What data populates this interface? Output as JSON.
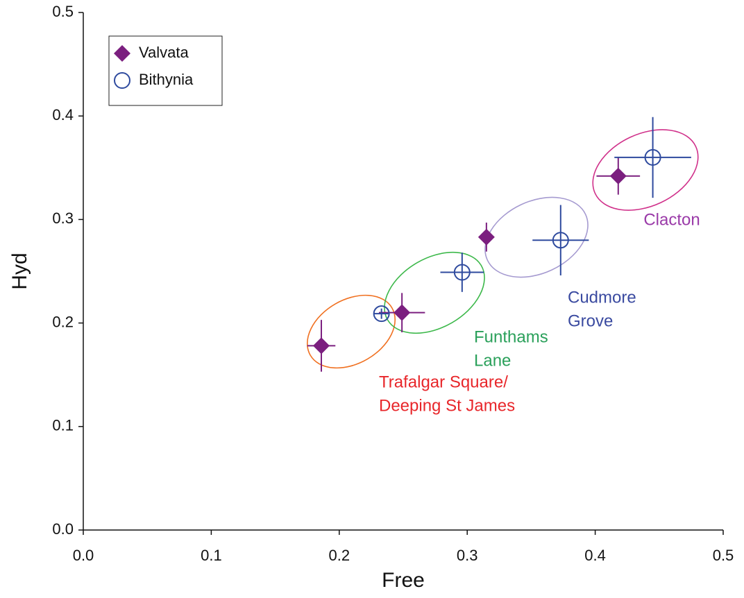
{
  "chart_data": {
    "type": "scatter",
    "xlabel": "Free",
    "ylabel": "Hyd",
    "xlim": [
      0,
      0.5
    ],
    "ylim": [
      0,
      0.5
    ],
    "xticks": [
      {
        "value": 0,
        "label": "0.0"
      },
      {
        "value": 0.1,
        "label": "0.1"
      },
      {
        "value": 0.2,
        "label": "0.2"
      },
      {
        "value": 0.3,
        "label": "0.3"
      },
      {
        "value": 0.4,
        "label": "0.4"
      },
      {
        "value": 0.5,
        "label": "0.5"
      }
    ],
    "yticks": [
      {
        "value": 0,
        "label": "0.0"
      },
      {
        "value": 0.1,
        "label": "0.1"
      },
      {
        "value": 0.2,
        "label": "0.2"
      },
      {
        "value": 0.3,
        "label": "0.3"
      },
      {
        "value": 0.4,
        "label": "0.4"
      },
      {
        "value": 0.5,
        "label": "0.5"
      }
    ],
    "legend": "upper left",
    "series": [
      {
        "name": "Valvata",
        "color": "#7b1f7f",
        "marker": "diamond",
        "x": [
          0.186,
          0.249,
          0.315,
          0.418
        ],
        "values": [
          0.178,
          0.21,
          0.283,
          0.342
        ],
        "xerr": [
          0.011,
          0.018,
          0.005,
          0.017
        ],
        "yerr": [
          0.025,
          0.019,
          0.014,
          0.018
        ]
      },
      {
        "name": "Bithynia",
        "color": "#2e4a9e",
        "marker": "circle",
        "x": [
          0.233,
          0.296,
          0.373,
          0.445
        ],
        "values": [
          0.209,
          0.249,
          0.28,
          0.36
        ],
        "xerr": [
          0.006,
          0.017,
          0.022,
          0.03
        ],
        "yerr": [
          0.005,
          0.019,
          0.034,
          0.039
        ]
      }
    ],
    "annotations": [
      {
        "lines": [
          "Trafalgar Square/",
          "Deeping St James"
        ],
        "color": "#e8262a"
      },
      {
        "lines": [
          "Funthams",
          "Lane"
        ],
        "color": "#2aa05a"
      },
      {
        "lines": [
          "Cudmore",
          "Grove"
        ],
        "color": "#3a4aa0"
      },
      {
        "lines": [
          "Clacton"
        ],
        "color": "#9a3aa8"
      }
    ]
  }
}
